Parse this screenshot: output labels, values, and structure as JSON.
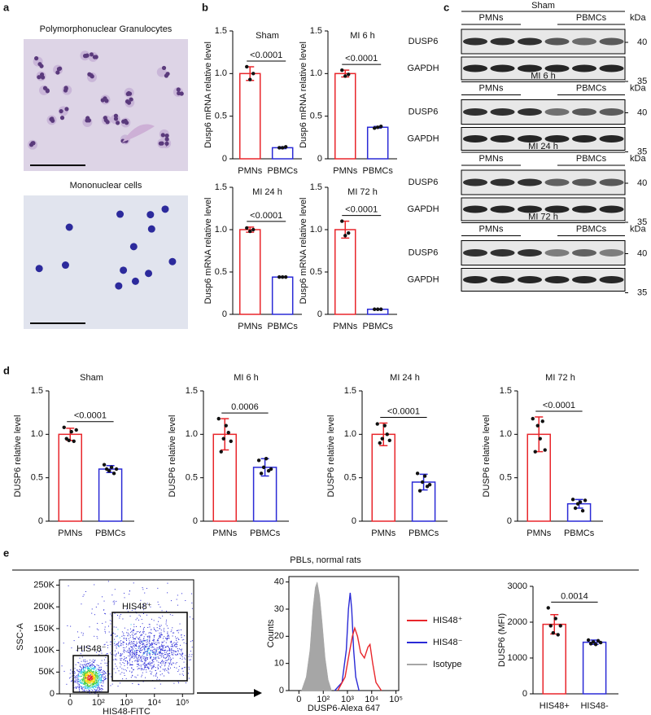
{
  "panel_labels": [
    "a",
    "b",
    "c",
    "d",
    "e"
  ],
  "panel_a": {
    "images": [
      {
        "title": "Polymorphonuclear Granulocytes"
      },
      {
        "title": "Mononuclear cells"
      }
    ]
  },
  "panel_e": {
    "title": "PBLs, normal rats"
  },
  "blots": {
    "unit": "kDa",
    "lanes": [
      "PMNs",
      "PBMCs"
    ],
    "titles": [
      "Sham",
      "MI 6 h",
      "MI 24 h",
      "MI 72 h"
    ],
    "rows": [
      {
        "label": "DUSP6",
        "mw": 40
      },
      {
        "label": "GAPDH",
        "mw": 35
      }
    ]
  },
  "chart_data": [
    {
      "type": "bar",
      "title": "Sham",
      "ylabel": "Dusp6 mRNA relative level",
      "categories": [
        "PMNs",
        "PBMCs"
      ],
      "colors": [
        "#e8262b",
        "#2a2ad6"
      ],
      "values": [
        1.0,
        0.13
      ],
      "errors": [
        0.08,
        0.01
      ],
      "points": [
        [
          1.08,
          0.93,
          1.0
        ],
        [
          0.13,
          0.13,
          0.14
        ]
      ],
      "comparison": "<0.0001",
      "ylim": [
        0,
        1.5
      ],
      "yticks": [
        0,
        0.5,
        {
          "value": 1,
          "label": "1.0"
        },
        1.5
      ]
    },
    {
      "type": "bar",
      "title": "MI 6 h",
      "ylabel": "Dusp6 mRNA relative level",
      "categories": [
        "PMNs",
        "PBMCs"
      ],
      "colors": [
        "#e8262b",
        "#2a2ad6"
      ],
      "values": [
        1.0,
        0.37
      ],
      "errors": [
        0.04,
        0.01
      ],
      "points": [
        [
          1.04,
          0.97,
          0.99
        ],
        [
          0.36,
          0.37,
          0.38
        ]
      ],
      "comparison": "<0.0001",
      "ylim": [
        0,
        1.5
      ],
      "yticks": [
        0,
        0.5,
        {
          "value": 1,
          "label": "1.0"
        },
        1.5
      ]
    },
    {
      "type": "bar",
      "title": "MI 24 h",
      "ylabel": "Dusp6 mRNA relative level",
      "categories": [
        "PMNs",
        "PBMCs"
      ],
      "colors": [
        "#e8262b",
        "#2a2ad6"
      ],
      "values": [
        1.0,
        0.44
      ],
      "errors": [
        0.03,
        0.005
      ],
      "points": [
        [
          1.02,
          0.98,
          1.0
        ],
        [
          0.44,
          0.44,
          0.44
        ]
      ],
      "comparison": "<0.0001",
      "ylim": [
        0,
        1.5
      ],
      "yticks": [
        0,
        0.5,
        {
          "value": 1,
          "label": "1.0"
        },
        1.5
      ]
    },
    {
      "type": "bar",
      "title": "MI 72 h",
      "ylabel": "Dusp6 mRNA relative level",
      "categories": [
        "PMNs",
        "PBMCs"
      ],
      "colors": [
        "#e8262b",
        "#2a2ad6"
      ],
      "values": [
        1.0,
        0.06
      ],
      "errors": [
        0.1,
        0.005
      ],
      "points": [
        [
          1.1,
          0.93,
          0.96
        ],
        [
          0.06,
          0.06,
          0.06
        ]
      ],
      "comparison": "<0.0001",
      "ylim": [
        0,
        1.5
      ],
      "yticks": [
        0,
        0.5,
        {
          "value": 1,
          "label": "1.0"
        },
        1.5
      ]
    },
    {
      "type": "bar",
      "title": "Sham",
      "ylabel": "DUSP6 relative level",
      "categories": [
        "PMNs",
        "PBMCs"
      ],
      "colors": [
        "#e8262b",
        "#2a2ad6"
      ],
      "values": [
        1.0,
        0.6
      ],
      "errors": [
        0.07,
        0.04
      ],
      "points": [
        [
          1.08,
          0.95,
          0.93,
          1.03,
          0.92,
          1.05
        ],
        [
          0.65,
          0.6,
          0.58,
          0.62,
          0.55,
          0.6
        ]
      ],
      "comparison": "<0.0001",
      "ylim": [
        0,
        1.5
      ],
      "yticks": [
        0,
        0.5,
        {
          "value": 1,
          "label": "1.0"
        },
        1.5
      ]
    },
    {
      "type": "bar",
      "title": "MI 6 h",
      "ylabel": "DUSP6 relative level",
      "categories": [
        "PMNs",
        "PBMCs"
      ],
      "colors": [
        "#e8262b",
        "#2a2ad6"
      ],
      "values": [
        1.0,
        0.62
      ],
      "errors": [
        0.18,
        0.1
      ],
      "points": [
        [
          1.18,
          0.8,
          0.95,
          1.1,
          1.02,
          0.92
        ],
        [
          0.7,
          0.55,
          0.62,
          0.72,
          0.58,
          0.6
        ]
      ],
      "comparison": "0.0006",
      "ylim": [
        0,
        1.5
      ],
      "yticks": [
        0,
        0.5,
        {
          "value": 1,
          "label": "1.0"
        },
        1.5
      ]
    },
    {
      "type": "bar",
      "title": "MI 24 h",
      "ylabel": "DUSP6 relative level",
      "categories": [
        "PMNs",
        "PBMCs"
      ],
      "colors": [
        "#e8262b",
        "#2a2ad6"
      ],
      "values": [
        1.0,
        0.45
      ],
      "errors": [
        0.13,
        0.09
      ],
      "points": [
        [
          1.12,
          0.9,
          0.95,
          1.1,
          1.0,
          0.93
        ],
        [
          0.55,
          0.35,
          0.45,
          0.52,
          0.4,
          0.42
        ]
      ],
      "comparison": "<0.0001",
      "ylim": [
        0,
        1.5
      ],
      "yticks": [
        0,
        0.5,
        {
          "value": 1,
          "label": "1.0"
        },
        1.5
      ]
    },
    {
      "type": "bar",
      "title": "MI 72 h",
      "ylabel": "DUSP6 relative level",
      "categories": [
        "PMNs",
        "PBMCs"
      ],
      "colors": [
        "#e8262b",
        "#2a2ad6"
      ],
      "values": [
        1.0,
        0.2
      ],
      "errors": [
        0.2,
        0.05
      ],
      "points": [
        [
          1.18,
          0.8,
          1.1,
          0.95,
          1.15,
          0.82
        ],
        [
          0.25,
          0.15,
          0.2,
          0.22,
          0.12,
          0.24
        ]
      ],
      "comparison": "<0.0001",
      "ylim": [
        0,
        1.5
      ],
      "yticks": [
        0,
        0.5,
        {
          "value": 1,
          "label": "1.0"
        },
        1.5
      ]
    },
    {
      "type": "bar",
      "title": null,
      "ylabel": "DUSP6 (MFI)",
      "categories": [
        "HIS48+",
        "HIS48-"
      ],
      "colors": [
        "#e8262b",
        "#2a2ad6"
      ],
      "values": [
        1940,
        1440
      ],
      "errors": [
        270,
        60
      ],
      "points": [
        [
          2400,
          1900,
          1700,
          2100,
          1650,
          1900
        ],
        [
          1500,
          1400,
          1450,
          1380,
          1480,
          1430
        ]
      ],
      "comparison": "0.0014",
      "ylim": [
        0,
        3000
      ],
      "yticks": [
        0,
        1000,
        2000,
        3000
      ]
    },
    {
      "type": "scatter",
      "xlabel": "HIS48-FITC",
      "ylabel": "SSC-A",
      "x_scale": "asinh",
      "gates": [
        "HIS48⁻",
        "HIS48⁺"
      ],
      "xlim": [
        -20,
        250000
      ],
      "ylim": [
        0,
        262144
      ],
      "xticks": [
        0,
        {
          "value": 100,
          "label": "10²"
        },
        {
          "value": 1000,
          "label": "10³"
        },
        {
          "value": 10000,
          "label": "10⁴"
        },
        {
          "value": 100000,
          "label": "10⁵"
        }
      ],
      "yticks": [
        0,
        {
          "value": 50000,
          "label": "50K"
        },
        {
          "value": 100000,
          "label": "100K"
        },
        {
          "value": 150000,
          "label": "150K"
        },
        {
          "value": 200000,
          "label": "200K"
        },
        {
          "value": 250000,
          "label": "250K"
        }
      ]
    },
    {
      "type": "line",
      "xlabel": "DUSP6-Alexa 647",
      "ylabel": "Counts",
      "x_scale": "asinh",
      "xlim": [
        -22,
        130000
      ],
      "ylim": [
        0,
        42
      ],
      "xticks": [
        0,
        {
          "value": 100,
          "label": "10²"
        },
        {
          "value": 1000,
          "label": "10³"
        },
        {
          "value": 10000,
          "label": "10⁴"
        },
        {
          "value": 100000,
          "label": "10⁵"
        }
      ],
      "yticks": [
        0,
        10,
        20,
        30,
        40
      ],
      "series": [
        {
          "name": "HIS48⁺",
          "color": "#e8262b",
          "fill": false,
          "x": [
            400,
            800,
            1200,
            1600,
            2000,
            2600,
            3500,
            5000,
            7000,
            8500,
            11000,
            15000,
            25000
          ],
          "values": [
            0,
            5,
            14,
            20,
            23,
            20,
            14,
            12,
            16,
            17,
            10,
            3,
            0
          ]
        },
        {
          "name": "HIS48⁻",
          "color": "#2a2ad6",
          "fill": false,
          "x": [
            300,
            600,
            900,
            1100,
            1300,
            1500,
            1800,
            2200,
            3000
          ],
          "values": [
            0,
            3,
            15,
            30,
            36,
            30,
            15,
            5,
            0
          ]
        },
        {
          "name": "Isotype",
          "color": "#a6a6a6",
          "fill": true,
          "x": [
            5,
            15,
            25,
            35,
            45,
            55,
            70,
            90,
            120,
            160,
            220
          ],
          "values": [
            0,
            5,
            15,
            30,
            38,
            40,
            35,
            25,
            12,
            4,
            0
          ]
        }
      ]
    }
  ]
}
